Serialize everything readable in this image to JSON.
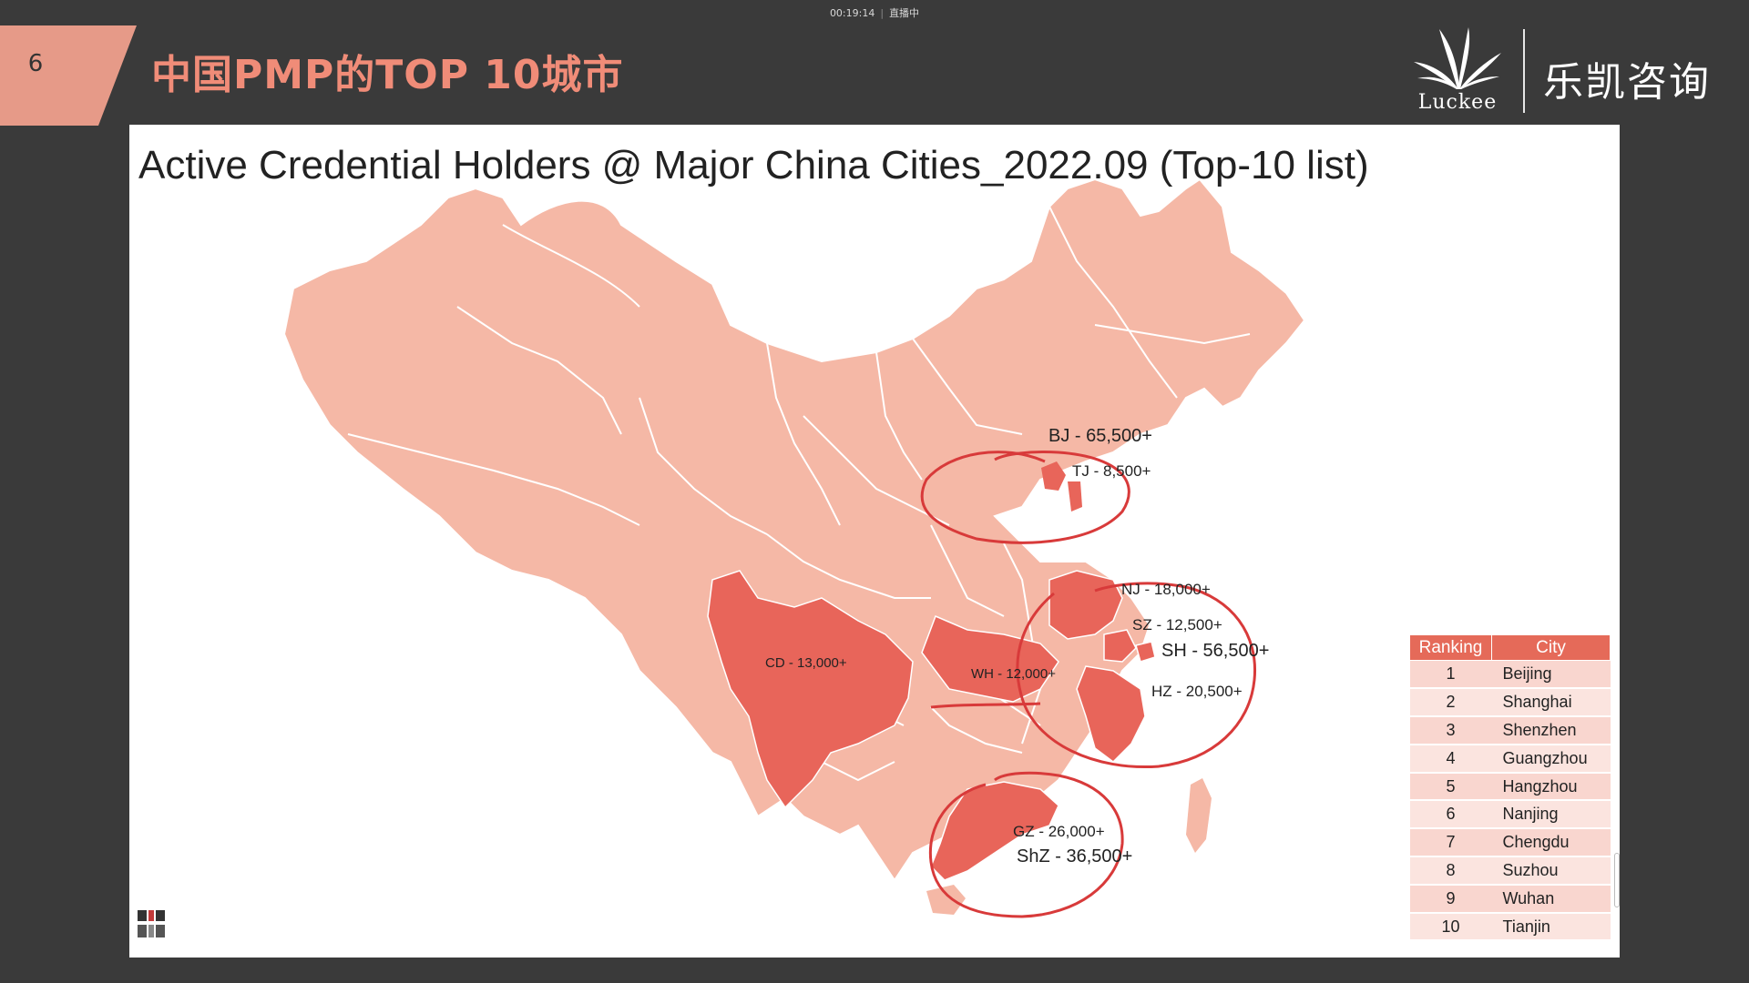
{
  "live": {
    "time": "00:19:14",
    "status": "直播中"
  },
  "slide": {
    "number": "6",
    "title": "中国PMP的TOP 10城市"
  },
  "brand": {
    "latin": "Luckee",
    "chinese": "乐凯咨询",
    "accent_color": "#f08c78"
  },
  "map": {
    "title": "Active Credential Holders @ Major China Cities_2022.09 (Top-10 list)",
    "base_color": "#f5b8a6",
    "highlight_color": "#e8655a",
    "annotation_color": "#d83a3a",
    "cities": [
      {
        "code": "BJ",
        "label": "BJ - 65,500+"
      },
      {
        "code": "TJ",
        "label": "TJ - 8,500+"
      },
      {
        "code": "NJ",
        "label": "NJ - 18,000+"
      },
      {
        "code": "SZ",
        "label": "SZ - 12,500+"
      },
      {
        "code": "SH",
        "label": "SH - 56,500+"
      },
      {
        "code": "HZ",
        "label": "HZ - 20,500+"
      },
      {
        "code": "CD",
        "label": "CD - 13,000+"
      },
      {
        "code": "WH",
        "label": "WH - 12,000+"
      },
      {
        "code": "GZ",
        "label": "GZ - 26,000+"
      },
      {
        "code": "ShZ",
        "label": "ShZ - 36,500+"
      }
    ]
  },
  "ranking": {
    "headers": [
      "Ranking",
      "City"
    ],
    "rows": [
      {
        "rank": "1",
        "city": "Beijing"
      },
      {
        "rank": "2",
        "city": "Shanghai"
      },
      {
        "rank": "3",
        "city": "Shenzhen"
      },
      {
        "rank": "4",
        "city": "Guangzhou"
      },
      {
        "rank": "5",
        "city": "Hangzhou"
      },
      {
        "rank": "6",
        "city": "Nanjing"
      },
      {
        "rank": "7",
        "city": "Chengdu"
      },
      {
        "rank": "8",
        "city": "Suzhou"
      },
      {
        "rank": "9",
        "city": "Wuhan"
      },
      {
        "rank": "10",
        "city": "Tianjin"
      }
    ]
  }
}
